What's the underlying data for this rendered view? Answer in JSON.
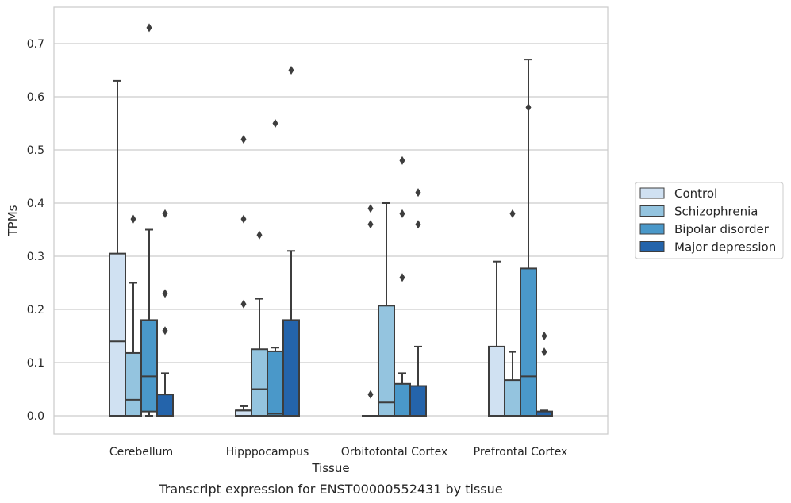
{
  "chart_data": {
    "type": "boxplot",
    "title": "",
    "caption": "Transcript expression for ENST00000552431 by tissue",
    "xlabel": "Tissue",
    "ylabel": "TPMs",
    "ylim": [
      -0.035,
      0.77
    ],
    "yticks": [
      0.0,
      0.1,
      0.2,
      0.3,
      0.4,
      0.5,
      0.6,
      0.7
    ],
    "ytick_labels": [
      "0.0",
      "0.1",
      "0.2",
      "0.3",
      "0.4",
      "0.5",
      "0.6",
      "0.7"
    ],
    "grid": "horizontal",
    "legend_position": "right",
    "categories": [
      "Cerebellum",
      "Hipppocampus",
      "Orbitofontal Cortex",
      "Prefrontal Cortex"
    ],
    "series": [
      {
        "name": "Control",
        "color": "#d0e1f2",
        "boxes": [
          {
            "whislo": 0,
            "q1": 0,
            "med": 0.14,
            "q3": 0.305,
            "whishi": 0.63,
            "fliers": []
          },
          {
            "whislo": 0,
            "q1": 0,
            "med": 0.01,
            "q3": 0.01,
            "whishi": 0.018,
            "fliers": [
              0.52,
              0.37,
              0.21
            ]
          },
          {
            "whislo": 0,
            "q1": 0,
            "med": 0,
            "q3": 0,
            "whishi": 0,
            "fliers": [
              0.39,
              0.36,
              0.04
            ]
          },
          {
            "whislo": 0,
            "q1": 0,
            "med": 0,
            "q3": 0.13,
            "whishi": 0.29,
            "fliers": []
          }
        ]
      },
      {
        "name": "Schizophrenia",
        "color": "#94c4df",
        "boxes": [
          {
            "whislo": 0,
            "q1": 0,
            "med": 0.03,
            "q3": 0.118,
            "whishi": 0.25,
            "fliers": [
              0.37
            ]
          },
          {
            "whislo": 0,
            "q1": 0,
            "med": 0.05,
            "q3": 0.125,
            "whishi": 0.22,
            "fliers": [
              0.34
            ]
          },
          {
            "whislo": 0,
            "q1": 0,
            "med": 0.025,
            "q3": 0.207,
            "whishi": 0.4,
            "fliers": []
          },
          {
            "whislo": 0,
            "q1": 0,
            "med": 0,
            "q3": 0.067,
            "whishi": 0.12,
            "fliers": [
              0.38
            ]
          }
        ]
      },
      {
        "name": "Bipolar disorder",
        "color": "#4a98c9",
        "boxes": [
          {
            "whislo": 0,
            "q1": 0.008,
            "med": 0.074,
            "q3": 0.18,
            "whishi": 0.35,
            "fliers": [
              0.73
            ]
          },
          {
            "whislo": 0,
            "q1": 0,
            "med": 0.004,
            "q3": 0.121,
            "whishi": 0.128,
            "fliers": [
              0.55
            ]
          },
          {
            "whislo": 0,
            "q1": 0,
            "med": 0,
            "q3": 0.06,
            "whishi": 0.08,
            "fliers": [
              0.48,
              0.38,
              0.26
            ]
          },
          {
            "whislo": 0,
            "q1": 0,
            "med": 0.074,
            "q3": 0.277,
            "whishi": 0.67,
            "fliers": [
              0.58
            ]
          }
        ]
      },
      {
        "name": "Major depression",
        "color": "#2464ab",
        "boxes": [
          {
            "whislo": 0,
            "q1": 0,
            "med": 0,
            "q3": 0.04,
            "whishi": 0.08,
            "fliers": [
              0.38,
              0.23,
              0.16
            ]
          },
          {
            "whislo": 0,
            "q1": 0,
            "med": 0,
            "q3": 0.18,
            "whishi": 0.31,
            "fliers": [
              0.65
            ]
          },
          {
            "whislo": 0,
            "q1": 0,
            "med": 0,
            "q3": 0.056,
            "whishi": 0.13,
            "fliers": [
              0.42,
              0.36
            ]
          },
          {
            "whislo": 0,
            "q1": 0,
            "med": 0,
            "q3": 0.008,
            "whishi": 0.01,
            "fliers": [
              0.15,
              0.12
            ]
          }
        ]
      }
    ]
  }
}
